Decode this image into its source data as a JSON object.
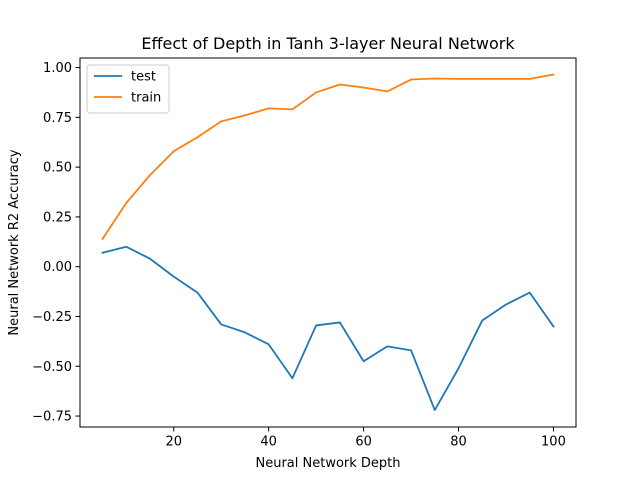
{
  "chart_data": {
    "type": "line",
    "title": "Effect of Depth in Tanh 3-layer Neural Network",
    "xlabel": "Neural Network Depth",
    "ylabel": "Neural Network R2 Accuracy",
    "xlim": [
      0.25,
      104.75
    ],
    "ylim": [
      -0.805,
      1.048
    ],
    "xticks": [
      20,
      40,
      60,
      80,
      100
    ],
    "xtick_labels": [
      "20",
      "40",
      "60",
      "80",
      "100"
    ],
    "yticks": [
      -0.75,
      -0.5,
      -0.25,
      0.0,
      0.25,
      0.5,
      0.75,
      1.0
    ],
    "ytick_labels": [
      "−0.75",
      "−0.50",
      "−0.25",
      "0.00",
      "0.25",
      "0.50",
      "0.75",
      "1.00"
    ],
    "grid": false,
    "legend_position": "top-left",
    "x": [
      5,
      10,
      15,
      20,
      25,
      30,
      35,
      40,
      45,
      50,
      55,
      60,
      65,
      70,
      75,
      80,
      85,
      90,
      95,
      100
    ],
    "series": [
      {
        "name": "test",
        "color": "#1f77b4",
        "values": [
          0.07,
          0.1,
          0.04,
          -0.05,
          -0.13,
          -0.29,
          -0.33,
          -0.39,
          -0.56,
          -0.295,
          -0.28,
          -0.475,
          -0.4,
          -0.42,
          -0.72,
          -0.51,
          -0.27,
          -0.19,
          -0.13,
          -0.3
        ]
      },
      {
        "name": "train",
        "color": "#ff7f0e",
        "values": [
          0.14,
          0.32,
          0.46,
          0.58,
          0.65,
          0.73,
          0.76,
          0.795,
          0.79,
          0.875,
          0.915,
          0.9,
          0.88,
          0.94,
          0.945,
          0.943,
          0.943,
          0.943,
          0.943,
          0.965
        ]
      }
    ]
  }
}
